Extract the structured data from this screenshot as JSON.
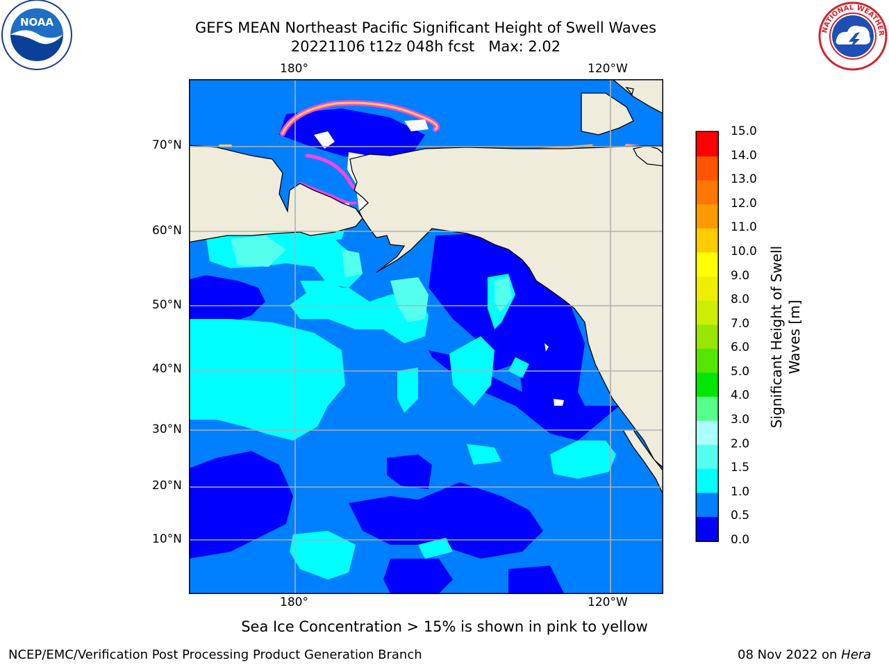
{
  "header": {
    "title_line1": "GEFS MEAN Northeast Pacific Significant Height of Swell Waves",
    "title_line2": "20221106 t12z 048h fcst   Max: 2.02"
  },
  "logos": {
    "left": {
      "name": "noaa-logo",
      "text": "NOAA",
      "ring_text": "NATIONAL OCEANIC AND ATMOSPHERIC ADMINISTRATION · U.S. DEPARTMENT OF COMMERCE"
    },
    "right": {
      "name": "nws-logo",
      "ring_text": "NATIONAL WEATHER SERVICE"
    }
  },
  "map": {
    "lon_ticks_top": [
      "180°",
      "120°W"
    ],
    "lon_ticks_bottom": [
      "180°",
      "120°W"
    ],
    "lat_ticks": [
      "70°N",
      "60°N",
      "50°N",
      "40°N",
      "30°N",
      "20°N",
      "10°N"
    ],
    "colors": {
      "land": "#efecdc",
      "c_0_0_5": "#0000ff",
      "c_0_5_1_0": "#0080ff",
      "c_1_0_1_5": "#00ffff",
      "c_1_5_2_0": "#55ffee",
      "ice_pink": "#ff44dd",
      "ice_yellow": "#ffd24a",
      "grid": "#b0b0b0"
    }
  },
  "colorbar": {
    "label": "Significant Height of Swell Waves [m]",
    "levels": [
      "0.0",
      "0.5",
      "1.0",
      "1.5",
      "2.0",
      "3.0",
      "4.0",
      "5.0",
      "6.0",
      "7.0",
      "8.0",
      "9.0",
      "10.0",
      "11.0",
      "12.0",
      "13.0",
      "14.0",
      "15.0"
    ],
    "colors": [
      "#0000ff",
      "#0080ff",
      "#00ffff",
      "#55ffee",
      "#aaffff",
      "#55ff88",
      "#00e600",
      "#55e600",
      "#99e600",
      "#ccee00",
      "#eeee00",
      "#ffff00",
      "#ffcc00",
      "#ff9900",
      "#ff7700",
      "#ff5500",
      "#ff0000"
    ]
  },
  "caption": "Sea Ice Concentration > 15% is shown in pink to yellow",
  "footer": {
    "left": "NCEP/EMC/Verification Post Processing Product Generation Branch",
    "right_date": "08 Nov 2022 on ",
    "right_host": "Hera"
  }
}
